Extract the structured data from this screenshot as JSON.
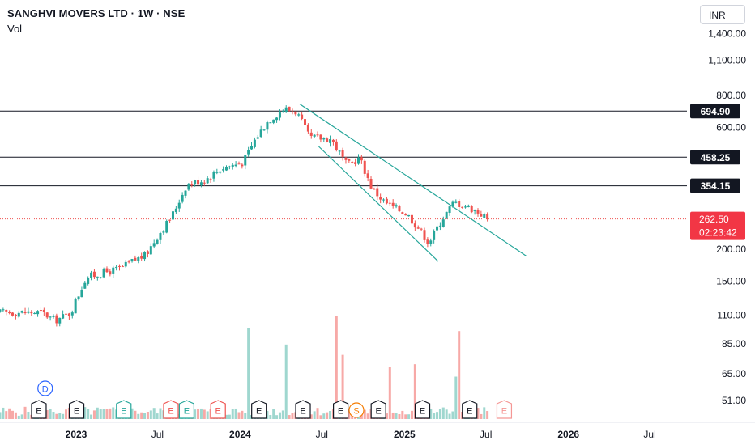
{
  "header": {
    "title": "SANGHVI MOVERS LTD · 1W · NSE",
    "vol_label": "Vol",
    "currency": "INR"
  },
  "colors": {
    "up": "#26a69a",
    "down": "#ef5350",
    "up_vol": "#9fd7cf",
    "down_vol": "#f7a9a7",
    "channel": "#26a69a",
    "hline": "#131722",
    "last_price_bg": "#f23645"
  },
  "chart_data": {
    "type": "candlestick",
    "scale": "log",
    "ylim": [
      40,
      1650
    ],
    "y_ticks": [
      "1,400.00",
      "1,100.00",
      "800.00",
      "600.00",
      "200.00",
      "150.00",
      "110.00",
      "85.00",
      "65.00",
      "51.00"
    ],
    "x_ticks": [
      "2023",
      "Jul",
      "2024",
      "Jul",
      "2025",
      "Jul",
      "2026",
      "Jul"
    ],
    "horizontal_levels": [
      {
        "label": "694.90",
        "value": 694.9
      },
      {
        "label": "458.25",
        "value": 458.25
      },
      {
        "label": "354.15",
        "value": 354.15
      }
    ],
    "last_price": {
      "label": "262.50",
      "value": 262.5,
      "countdown": "02:23:42"
    },
    "channel": [
      {
        "from": [
          "2024-05-13",
          740
        ],
        "to": [
          "2025-09-29",
          188
        ]
      },
      {
        "from": [
          "2024-06-24",
          505
        ],
        "to": [
          "2025-03-17",
          179
        ]
      }
    ],
    "price_anchors": [
      [
        "2022-10-17",
        113
      ],
      [
        "2022-11-14",
        105
      ],
      [
        "2022-12-19",
        112
      ],
      [
        "2023-01-23",
        155
      ],
      [
        "2023-03-06",
        162
      ],
      [
        "2023-04-10",
        168
      ],
      [
        "2023-05-08",
        180
      ],
      [
        "2023-06-05",
        190
      ],
      [
        "2023-07-03",
        228
      ],
      [
        "2023-07-31",
        265
      ],
      [
        "2023-09-04",
        358
      ],
      [
        "2023-10-16",
        375
      ],
      [
        "2023-11-20",
        415
      ],
      [
        "2024-01-08",
        438
      ],
      [
        "2024-02-05",
        545
      ],
      [
        "2024-03-04",
        640
      ],
      [
        "2024-04-08",
        710
      ],
      [
        "2024-05-06",
        690
      ],
      [
        "2024-06-03",
        548
      ],
      [
        "2024-07-22",
        540
      ],
      [
        "2024-08-26",
        425
      ],
      [
        "2024-09-23",
        455
      ],
      [
        "2024-10-21",
        345
      ],
      [
        "2024-11-18",
        305
      ],
      [
        "2025-01-06",
        275
      ],
      [
        "2025-02-03",
        240
      ],
      [
        "2025-02-24",
        212
      ],
      [
        "2025-03-24",
        260
      ],
      [
        "2025-04-21",
        305
      ],
      [
        "2025-05-19",
        295
      ],
      [
        "2025-06-16",
        278
      ],
      [
        "2025-07-07",
        262.5
      ]
    ],
    "volume_spikes": [
      [
        "2024-01-22",
        0.88
      ],
      [
        "2024-04-15",
        0.72
      ],
      [
        "2024-08-05",
        1.0
      ],
      [
        "2024-08-19",
        0.62
      ],
      [
        "2024-12-02",
        0.5
      ],
      [
        "2025-01-27",
        0.53
      ],
      [
        "2025-05-05",
        0.85
      ],
      [
        "2025-04-28",
        0.41
      ]
    ],
    "event_markers": [
      {
        "label": "D",
        "date": "2022-10-24",
        "row": "upper",
        "color": "#2962ff"
      },
      {
        "label": "E",
        "date": "2022-10-10",
        "row": "lower",
        "color": "#131722"
      },
      {
        "label": "E",
        "date": "2023-01-02",
        "row": "lower",
        "color": "#131722"
      },
      {
        "label": "E",
        "date": "2023-04-17",
        "row": "lower",
        "color": "#26a69a"
      },
      {
        "label": "E",
        "date": "2023-07-31",
        "row": "lower",
        "color": "#ef5350"
      },
      {
        "label": "E",
        "date": "2023-09-04",
        "row": "lower",
        "color": "#26a69a"
      },
      {
        "label": "E",
        "date": "2023-11-13",
        "row": "lower",
        "color": "#ef5350"
      },
      {
        "label": "E",
        "date": "2024-02-12",
        "row": "lower",
        "color": "#131722"
      },
      {
        "label": "E",
        "date": "2024-05-20",
        "row": "lower",
        "color": "#131722"
      },
      {
        "label": "E",
        "date": "2024-08-12",
        "row": "lower",
        "color": "#131722"
      },
      {
        "label": "S",
        "date": "2024-09-16",
        "row": "lower",
        "color": "#f57c00"
      },
      {
        "label": "E",
        "date": "2024-11-04",
        "row": "lower",
        "color": "#131722"
      },
      {
        "label": "E",
        "date": "2025-02-10",
        "row": "lower",
        "color": "#131722"
      },
      {
        "label": "E",
        "date": "2025-05-26",
        "row": "lower",
        "color": "#131722"
      },
      {
        "label": "E",
        "date": "2025-08-11",
        "row": "lower",
        "color": "#ef5350",
        "future": true
      }
    ]
  }
}
